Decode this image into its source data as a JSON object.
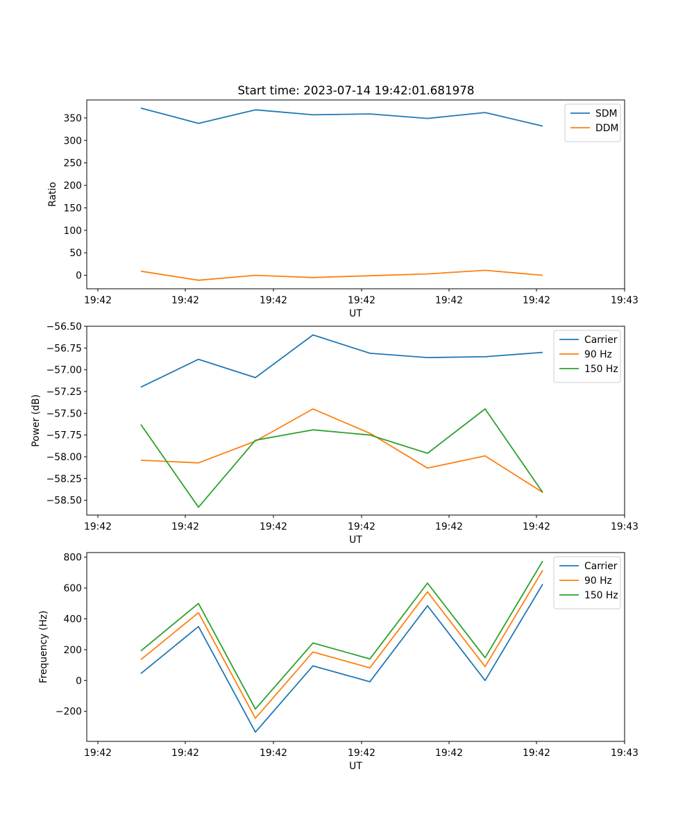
{
  "figure_title": "Start time: 2023-07-14 19:42:01.681978",
  "chart_data": [
    {
      "type": "line",
      "title": "Start time: 2023-07-14 19:42:01.681978",
      "xlabel": "UT",
      "ylabel": "Ratio",
      "x_ticks": [
        "19:42",
        "19:42",
        "19:42",
        "19:42",
        "19:42",
        "19:42",
        "19:43"
      ],
      "ylim": [
        -30,
        390
      ],
      "yticks": [
        0,
        50,
        100,
        150,
        200,
        250,
        300,
        350
      ],
      "ytick_labels": [
        "0",
        "50",
        "100",
        "150",
        "200",
        "250",
        "300",
        "350"
      ],
      "legend": "top-right",
      "series": [
        {
          "name": "SDM",
          "color": "#1f77b4",
          "values": [
            372,
            338,
            368,
            357,
            359,
            349,
            362,
            332
          ]
        },
        {
          "name": "DDM",
          "color": "#ff7f0e",
          "values": [
            9,
            -11,
            0,
            -5,
            -1,
            3,
            11,
            0
          ]
        }
      ]
    },
    {
      "type": "line",
      "title": "",
      "xlabel": "UT",
      "ylabel": "Power (dB)",
      "x_ticks": [
        "19:42",
        "19:42",
        "19:42",
        "19:42",
        "19:42",
        "19:42",
        "19:43"
      ],
      "ylim": [
        -58.67,
        -56.5
      ],
      "yticks": [
        -58.5,
        -58.25,
        -58.0,
        -57.75,
        -57.5,
        -57.25,
        -57.0,
        -56.75,
        -56.5
      ],
      "ytick_labels": [
        "−58.50",
        "−58.25",
        "−58.00",
        "−57.75",
        "−57.50",
        "−57.25",
        "−57.00",
        "−56.75",
        "−56.50"
      ],
      "legend": "top-right",
      "series": [
        {
          "name": "Carrier",
          "color": "#1f77b4",
          "values": [
            -57.2,
            -56.88,
            -57.09,
            -56.6,
            -56.81,
            -56.86,
            -56.85,
            -56.8
          ]
        },
        {
          "name": "90 Hz",
          "color": "#ff7f0e",
          "values": [
            -58.04,
            -58.07,
            -57.82,
            -57.45,
            -57.73,
            -58.13,
            -57.99,
            -58.41
          ]
        },
        {
          "name": "150 Hz",
          "color": "#2ca02c",
          "values": [
            -57.63,
            -58.58,
            -57.81,
            -57.69,
            -57.75,
            -57.96,
            -57.45,
            -58.41
          ]
        }
      ]
    },
    {
      "type": "line",
      "title": "",
      "xlabel": "UT",
      "ylabel": "Frequency (Hz)",
      "x_ticks": [
        "19:42",
        "19:42",
        "19:42",
        "19:42",
        "19:42",
        "19:42",
        "19:43"
      ],
      "ylim": [
        -395,
        830
      ],
      "yticks": [
        -200,
        0,
        200,
        400,
        600,
        800
      ],
      "ytick_labels": [
        "−200",
        "0",
        "200",
        "400",
        "600",
        "800"
      ],
      "legend": "top-right",
      "series": [
        {
          "name": "Carrier",
          "color": "#1f77b4",
          "values": [
            45,
            350,
            -335,
            95,
            -8,
            485,
            0,
            625
          ]
        },
        {
          "name": "90 Hz",
          "color": "#ff7f0e",
          "values": [
            135,
            440,
            -245,
            185,
            82,
            575,
            90,
            715
          ]
        },
        {
          "name": "150 Hz",
          "color": "#2ca02c",
          "values": [
            192,
            500,
            -185,
            243,
            140,
            632,
            148,
            775
          ]
        }
      ]
    }
  ]
}
